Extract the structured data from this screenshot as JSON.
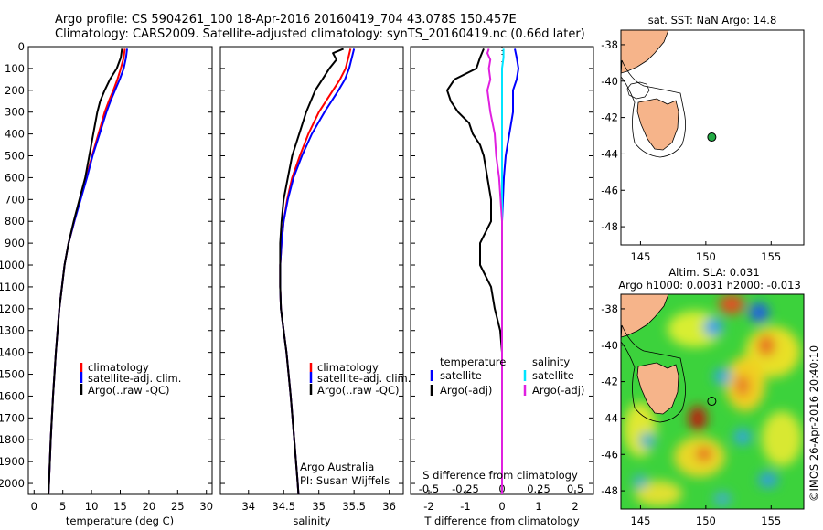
{
  "title": {
    "line1": "Argo profile: CS 5904261_100 18-Apr-2016 20160419_704 43.078S 150.457E",
    "line2": "Climatology: CARS2009. Satellite-adjusted climatology: synTS_20160419.nc (0.66d later)"
  },
  "legend": {
    "climatology": "climatology",
    "satellite_adj": "satellite-adj. clim.",
    "argo_raw_qc": "Argo(..raw -QC)",
    "temperature_hdr": "temperature",
    "salinity_hdr": "salinity",
    "satellite": "satellite",
    "argo_adj": "Argo(-adj)"
  },
  "annotations": {
    "institution": "Argo Australia",
    "pi": "PI: Susan Wijffels",
    "credit": "©IMOS 26-Apr-2016 20:40:10"
  },
  "maps": {
    "sst_title": "sat. SST: NaN Argo: 14.8",
    "sla_title1": "Altim. SLA: 0.031",
    "sla_title2": "Argo h1000: 0.0031 h2000: -0.013",
    "lon_ticks": [
      145,
      150,
      155
    ],
    "lat_ticks": [
      -38,
      -40,
      -42,
      -44,
      -46,
      -48
    ],
    "xlim": [
      143.5,
      157.5
    ],
    "ylim": [
      -49,
      -37.2
    ],
    "float_position": {
      "lon": 150.457,
      "lat": -43.078
    }
  },
  "colors": {
    "climatology": "#ff0000",
    "satellite": "#0000ff",
    "argo": "#000000",
    "salinity_satellite": "#00e5ff",
    "salinity_argo": "#e020e0",
    "land": "#f6b48a",
    "float_marker": "#22aa44"
  },
  "chart_data": [
    {
      "type": "line",
      "xlabel": "temperature (deg C)",
      "ylabel": "",
      "xlim": [
        -1,
        31
      ],
      "ylim": [
        2050,
        0
      ],
      "xticks": [
        0,
        5,
        10,
        15,
        20,
        25,
        30
      ],
      "yticks": [
        0,
        100,
        200,
        300,
        400,
        500,
        600,
        700,
        800,
        900,
        1000,
        1100,
        1200,
        1300,
        1400,
        1500,
        1600,
        1700,
        1800,
        1900,
        2000
      ],
      "series": [
        {
          "name": "climatology",
          "depth": [
            10,
            50,
            100,
            150,
            200,
            250,
            300,
            400,
            500,
            600,
            700,
            800,
            900,
            1000,
            1200,
            1400,
            1600,
            1800,
            2000,
            2050
          ],
          "values": [
            15.8,
            15.6,
            15.1,
            14.5,
            13.8,
            13.0,
            12.3,
            11.2,
            10.1,
            9.1,
            8.0,
            7.0,
            6.0,
            5.3,
            4.4,
            3.8,
            3.3,
            2.9,
            2.6,
            2.5
          ]
        },
        {
          "name": "satellite-adj. clim.",
          "depth": [
            10,
            50,
            100,
            150,
            200,
            250,
            300,
            400,
            500,
            600,
            700,
            800,
            900,
            1000,
            1200,
            1400,
            1600,
            1800,
            2000,
            2050
          ],
          "values": [
            16.2,
            16.0,
            15.6,
            14.9,
            14.1,
            13.3,
            12.6,
            11.4,
            10.2,
            9.2,
            8.1,
            7.0,
            6.0,
            5.3,
            4.4,
            3.8,
            3.3,
            2.9,
            2.6,
            2.5
          ]
        },
        {
          "name": "Argo(..raw -QC)",
          "depth": [
            10,
            50,
            100,
            150,
            200,
            250,
            300,
            400,
            500,
            600,
            700,
            800,
            900,
            1000,
            1200,
            1400,
            1600,
            1800,
            2000,
            2050
          ],
          "values": [
            15.3,
            15.1,
            14.4,
            13.2,
            12.3,
            11.5,
            11.0,
            10.3,
            9.6,
            8.9,
            7.9,
            6.9,
            6.0,
            5.3,
            4.4,
            3.8,
            3.3,
            2.9,
            2.6,
            2.5
          ]
        }
      ]
    },
    {
      "type": "line",
      "xlabel": "salinity",
      "ylabel": "",
      "xlim": [
        33.6,
        36.2
      ],
      "ylim": [
        2050,
        0
      ],
      "xticks": [
        34,
        34.5,
        35,
        35.5,
        36
      ],
      "series": [
        {
          "name": "climatology",
          "depth": [
            10,
            50,
            100,
            150,
            200,
            300,
            400,
            500,
            600,
            700,
            800,
            900,
            1000,
            1100,
            1200,
            1300,
            1400,
            1600,
            1800,
            2000,
            2050
          ],
          "values": [
            35.45,
            35.42,
            35.38,
            35.3,
            35.2,
            35.0,
            34.85,
            34.73,
            34.62,
            34.55,
            34.5,
            34.47,
            34.45,
            34.45,
            34.46,
            34.5,
            34.54,
            34.6,
            34.65,
            34.7,
            34.71
          ]
        },
        {
          "name": "satellite-adj. clim.",
          "depth": [
            10,
            50,
            100,
            150,
            200,
            300,
            400,
            500,
            600,
            700,
            800,
            900,
            1000,
            1100,
            1200,
            1300,
            1400,
            1600,
            1800,
            2000,
            2050
          ],
          "values": [
            35.5,
            35.47,
            35.43,
            35.37,
            35.28,
            35.08,
            34.9,
            34.76,
            34.64,
            34.56,
            34.5,
            34.47,
            34.45,
            34.45,
            34.46,
            34.5,
            34.54,
            34.6,
            34.65,
            34.7,
            34.71
          ]
        },
        {
          "name": "Argo(..raw -QC)",
          "depth": [
            10,
            30,
            60,
            100,
            150,
            200,
            300,
            400,
            500,
            600,
            700,
            800,
            900,
            1000,
            1100,
            1200,
            1300,
            1400,
            1600,
            1800,
            2000,
            2050
          ],
          "values": [
            35.35,
            35.2,
            35.25,
            35.15,
            35.05,
            34.95,
            34.82,
            34.72,
            34.62,
            34.56,
            34.5,
            34.47,
            34.45,
            34.45,
            34.45,
            34.46,
            34.5,
            34.54,
            34.6,
            34.65,
            34.7,
            34.71
          ]
        }
      ]
    },
    {
      "type": "line",
      "xlabel": "T difference from climatology",
      "xlabel2": "S difference from climatology",
      "ylabel": "",
      "xlim": [
        -2.5,
        2.5
      ],
      "ylim": [
        2050,
        0
      ],
      "xticks": [
        -2,
        -1,
        0,
        1,
        2
      ],
      "xticks_top": [
        -0.5,
        -0.25,
        0,
        0.25,
        0.5
      ],
      "series": [
        {
          "name": "temperature satellite",
          "depth": [
            10,
            50,
            100,
            150,
            200,
            300,
            400,
            500,
            600,
            800,
            1000,
            2050
          ],
          "values": [
            0.35,
            0.4,
            0.45,
            0.4,
            0.3,
            0.3,
            0.2,
            0.1,
            0.05,
            0.0,
            0.0,
            0.0
          ]
        },
        {
          "name": "temperature Argo(-adj)",
          "depth": [
            10,
            50,
            100,
            150,
            200,
            250,
            300,
            350,
            400,
            450,
            500,
            600,
            700,
            800,
            900,
            1000,
            1100,
            1200,
            1300,
            1400,
            1500,
            1600,
            2050
          ],
          "values": [
            -0.5,
            -0.6,
            -0.7,
            -1.3,
            -1.5,
            -1.4,
            -1.2,
            -0.9,
            -0.8,
            -0.6,
            -0.5,
            -0.4,
            -0.3,
            -0.3,
            -0.6,
            -0.6,
            -0.3,
            -0.2,
            -0.05,
            0.0,
            0.0,
            0.0,
            0.0
          ]
        },
        {
          "name": "salinity satellite",
          "depth": [
            10,
            50,
            100,
            200,
            300,
            400,
            600,
            2050
          ],
          "values": [
            0.01,
            0.01,
            0.0,
            0.0,
            0.0,
            0.0,
            0.0,
            0.0
          ]
        },
        {
          "name": "salinity Argo(-adj)",
          "depth": [
            10,
            30,
            60,
            100,
            150,
            200,
            300,
            400,
            500,
            600,
            700,
            800,
            900,
            1000,
            2050
          ],
          "values": [
            -0.09,
            -0.1,
            -0.08,
            -0.09,
            -0.08,
            -0.1,
            -0.08,
            -0.05,
            -0.04,
            -0.02,
            -0.01,
            0.0,
            0.0,
            0.0,
            0.0
          ]
        }
      ]
    }
  ]
}
